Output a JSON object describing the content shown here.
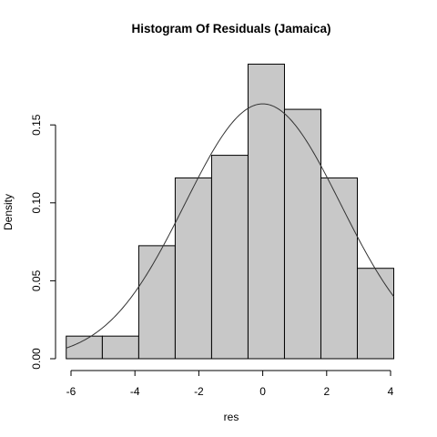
{
  "chart_data": {
    "type": "bar",
    "title": "Histogram Of Residuals (Jamaica)",
    "xlabel": "res",
    "ylabel": "Density",
    "xlim": [
      -6,
      4
    ],
    "ylim": [
      0,
      0.15
    ],
    "x_ticks": [
      "-6",
      "-4",
      "-2",
      "0",
      "2",
      "4"
    ],
    "y_ticks": [
      "0.00",
      "0.05",
      "0.10",
      "0.15"
    ],
    "bins": [
      {
        "x0": -6.15,
        "x1": -5.02,
        "density": 0.0145
      },
      {
        "x0": -5.02,
        "x1": -3.88,
        "density": 0.0145
      },
      {
        "x0": -3.88,
        "x1": -2.74,
        "density": 0.0725
      },
      {
        "x0": -2.74,
        "x1": -1.6,
        "density": 0.116
      },
      {
        "x0": -1.6,
        "x1": -0.46,
        "density": 0.1305
      },
      {
        "x0": -0.46,
        "x1": 0.68,
        "density": 0.189
      },
      {
        "x0": 0.68,
        "x1": 1.82,
        "density": 0.16
      },
      {
        "x0": 1.82,
        "x1": 2.96,
        "density": 0.116
      },
      {
        "x0": 2.96,
        "x1": 4.1,
        "density": 0.058
      }
    ],
    "density_curve": {
      "mean": 0.0,
      "sd": 2.44
    },
    "bar_fill": "#c8c8c8",
    "line_color": "#333333",
    "grid": false,
    "legend": false
  }
}
